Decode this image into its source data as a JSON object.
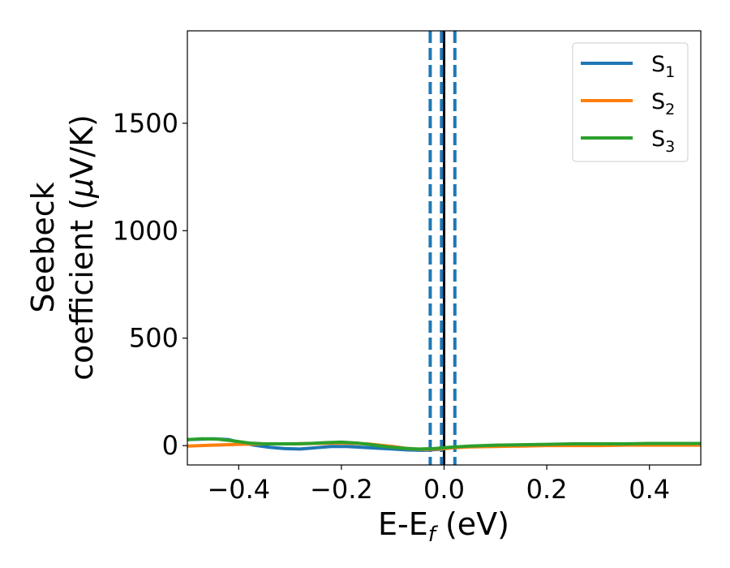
{
  "chart_data": {
    "type": "line",
    "xlabel": "E-E",
    "xlabel_sub": "f",
    "xlabel_unit": " (eV)",
    "ylabel_line1": "Seebeck",
    "ylabel_line2_pre": "coefficient  (",
    "ylabel_mu": "μ",
    "ylabel_line2_post": "V/K)",
    "xlim": [
      -0.5,
      0.5
    ],
    "ylim": [
      -90,
      1930
    ],
    "x_ticks": [
      -0.4,
      -0.2,
      0.0,
      0.2,
      0.4
    ],
    "x_tick_labels": [
      "−0.4",
      "−0.2",
      "0.0",
      "0.2",
      "0.4"
    ],
    "y_ticks": [
      0,
      500,
      1000,
      1500
    ],
    "y_tick_labels": [
      "0",
      "500",
      "1000",
      "1500"
    ],
    "grid": false,
    "legend_position": "top-right",
    "vertical_lines": [
      {
        "x": 0.0,
        "style": "solid",
        "color": "#000000"
      },
      {
        "x": -0.027,
        "style": "dashed",
        "color": "#1f77b4"
      },
      {
        "x": -0.005,
        "style": "dashed",
        "color": "#1f77b4"
      },
      {
        "x": 0.021,
        "style": "dashed",
        "color": "#1f77b4"
      }
    ],
    "series": [
      {
        "name": "S",
        "sub": "1",
        "color": "#1f77b4",
        "x": [
          -0.5,
          -0.45,
          -0.42,
          -0.4,
          -0.37,
          -0.34,
          -0.31,
          -0.28,
          -0.25,
          -0.22,
          -0.19,
          -0.16,
          -0.13,
          -0.1,
          -0.07,
          -0.04,
          -0.01,
          0.02,
          0.05,
          0.1,
          0.15,
          0.2,
          0.25,
          0.3,
          0.35,
          0.4,
          0.45,
          0.5
        ],
        "y": [
          28,
          32,
          28,
          16,
          2,
          -8,
          -14,
          -16,
          -10,
          -4,
          -4,
          -8,
          -12,
          -16,
          -20,
          -22,
          -18,
          -8,
          -4,
          -2,
          0,
          2,
          4,
          4,
          6,
          6,
          8,
          8
        ]
      },
      {
        "name": "S",
        "sub": "2",
        "color": "#ff7f0e",
        "x": [
          -0.5,
          -0.45,
          -0.4,
          -0.35,
          -0.3,
          -0.25,
          -0.2,
          -0.15,
          -0.1,
          -0.07,
          -0.04,
          -0.01,
          0.02,
          0.05,
          0.1,
          0.15,
          0.2,
          0.25,
          0.3,
          0.35,
          0.4,
          0.45,
          0.5
        ],
        "y": [
          -2,
          2,
          6,
          8,
          8,
          10,
          12,
          8,
          -4,
          -14,
          -18,
          -16,
          -10,
          -6,
          -4,
          -2,
          0,
          0,
          0,
          2,
          2,
          2,
          2
        ]
      },
      {
        "name": "S",
        "sub": "3",
        "color": "#2ca02c",
        "x": [
          -0.5,
          -0.47,
          -0.44,
          -0.41,
          -0.38,
          -0.35,
          -0.32,
          -0.29,
          -0.26,
          -0.23,
          -0.2,
          -0.17,
          -0.14,
          -0.11,
          -0.08,
          -0.05,
          -0.02,
          0.01,
          0.05,
          0.1,
          0.15,
          0.2,
          0.25,
          0.3,
          0.35,
          0.4,
          0.45,
          0.5
        ],
        "y": [
          28,
          32,
          30,
          22,
          12,
          8,
          8,
          8,
          10,
          14,
          16,
          12,
          4,
          -6,
          -12,
          -16,
          -14,
          -8,
          -2,
          2,
          4,
          6,
          8,
          8,
          8,
          10,
          10,
          10
        ]
      }
    ]
  }
}
